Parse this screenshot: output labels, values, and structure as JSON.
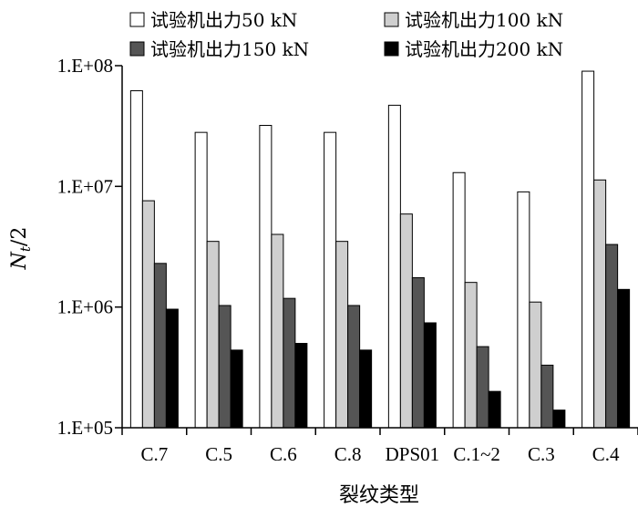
{
  "chart_data": {
    "type": "bar",
    "title": "",
    "xlabel": "裂纹类型",
    "ylabel_main": "N",
    "ylabel_sub": "t",
    "ylabel_tail": "/2",
    "yscale": "log",
    "ylim": [
      100000,
      100000000
    ],
    "yticks": [
      {
        "value": 100000,
        "label": "1.E+05"
      },
      {
        "value": 1000000,
        "label": "1.E+06"
      },
      {
        "value": 10000000,
        "label": "1.E+07"
      },
      {
        "value": 100000000,
        "label": "1.E+08"
      }
    ],
    "grid": false,
    "legend_position": "top",
    "categories": [
      "C.7",
      "C.5",
      "C.6",
      "C.8",
      "DPS01",
      "C.1~2",
      "C.3",
      "C.4"
    ],
    "series": [
      {
        "name": "试验机出力50 kN",
        "color": "#ffffff",
        "values": [
          62000000,
          28000000,
          32000000,
          28000000,
          47000000,
          13000000,
          9000000,
          90000000
        ]
      },
      {
        "name": "试验机出力100 kN",
        "color": "#cfcfcf",
        "values": [
          7600000,
          3500000,
          4000000,
          3500000,
          5900000,
          1600000,
          1100000,
          11300000
        ]
      },
      {
        "name": "试验机出力150 kN",
        "color": "#555555",
        "values": [
          2300000,
          1030000,
          1180000,
          1030000,
          1750000,
          470000,
          330000,
          3300000
        ]
      },
      {
        "name": "试验机出力200 kN",
        "color": "#000000",
        "values": [
          960000,
          440000,
          500000,
          440000,
          740000,
          200000,
          140000,
          1400000
        ]
      }
    ]
  }
}
